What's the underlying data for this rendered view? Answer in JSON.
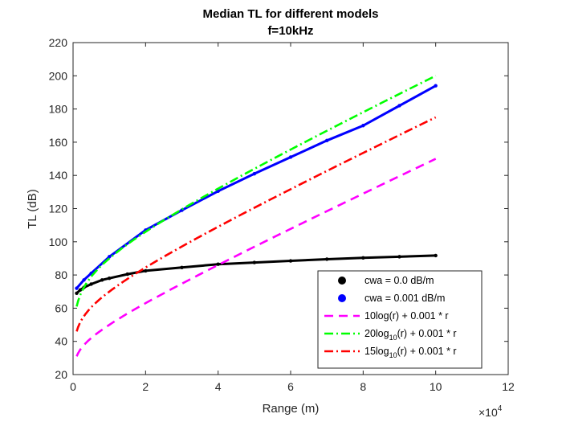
{
  "chart_data": {
    "type": "line",
    "title": [
      "Median TL for different models",
      "f=10kHz"
    ],
    "xlabel": "Range (m)",
    "ylabel": "TL (dB)",
    "x_exponent_label": "×10",
    "x_exponent_power": "4",
    "xlim": [
      0,
      120000
    ],
    "ylim": [
      20,
      220
    ],
    "xticks": [
      0,
      20000,
      40000,
      60000,
      80000,
      100000,
      120000
    ],
    "xtick_labels": [
      "0",
      "2",
      "4",
      "6",
      "8",
      "10",
      "12"
    ],
    "yticks": [
      20,
      40,
      60,
      80,
      100,
      120,
      140,
      160,
      180,
      200,
      220
    ],
    "ytick_labels": [
      "20",
      "40",
      "60",
      "80",
      "100",
      "120",
      "140",
      "160",
      "180",
      "200",
      "220"
    ],
    "legend_location": "bottom-right",
    "grid": false,
    "series": [
      {
        "name": "cwa = 0.0 dB/m",
        "legend_main": "cwa = 0.0 dB/m",
        "legend_sub": "",
        "legend_tail": "",
        "color": "#000000",
        "style": "dots",
        "x": [
          1000,
          2000,
          3000,
          5000,
          8000,
          10000,
          15000,
          20000,
          30000,
          40000,
          50000,
          60000,
          70000,
          80000,
          90000,
          100000
        ],
        "y": [
          69,
          71,
          72.5,
          74.5,
          77,
          78,
          80.5,
          82.5,
          84.5,
          86.5,
          87.5,
          88.5,
          89.5,
          90.3,
          91,
          91.7
        ]
      },
      {
        "name": "cwa = 0.001 dB/m",
        "legend_main": "cwa = 0.001 dB/m",
        "legend_sub": "",
        "legend_tail": "",
        "color": "#0000ff",
        "style": "dots",
        "x": [
          1000,
          3000,
          5000,
          10000,
          20000,
          30000,
          40000,
          50000,
          60000,
          70000,
          80000,
          90000,
          100000
        ],
        "y": [
          72,
          77,
          81,
          91,
          107,
          119,
          130.5,
          141,
          151,
          161,
          170,
          182,
          194
        ]
      },
      {
        "name": "10log(r) + 0.001 * r",
        "legend_main": "10log(r) + 0.001 * r",
        "legend_sub": "",
        "legend_tail": "",
        "color": "#ff00ff",
        "style": "dash"
      },
      {
        "name": "20log10(r) + 0.001 * r",
        "legend_main": "20log",
        "legend_sub": "10",
        "legend_tail": "(r) + 0.001 * r",
        "color": "#00ff00",
        "style": "dashdot"
      },
      {
        "name": "15log10(r) + 0.001 * r",
        "legend_main": "15log",
        "legend_sub": "10",
        "legend_tail": "(r) + 0.001 * r",
        "color": "#ff0000",
        "style": "dashdot"
      }
    ]
  }
}
